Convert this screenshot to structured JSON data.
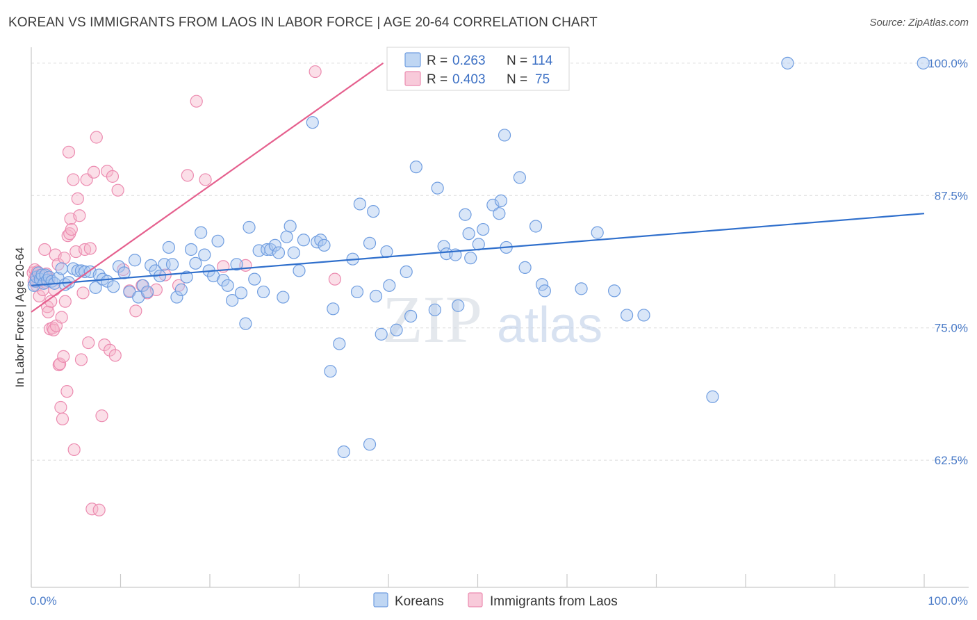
{
  "title": "KOREAN VS IMMIGRANTS FROM LAOS IN LABOR FORCE | AGE 20-64 CORRELATION CHART",
  "source": "Source: ZipAtlas.com",
  "watermark": {
    "part1": "ZIP",
    "part2": "atlas"
  },
  "colors": {
    "blue_fill": "#aac8ef",
    "blue_stroke": "#6f9de0",
    "blue_line": "#2f6fcc",
    "pink_fill": "#f6b8cd",
    "pink_stroke": "#ec8bb0",
    "pink_line": "#e5608e",
    "grid": "#dcdcdc",
    "tick_text": "#4a7bc8"
  },
  "legend": {
    "rows": [
      {
        "r_label": "R = ",
        "r_value": "0.263",
        "n_label": "N = ",
        "n_value": "114"
      },
      {
        "r_label": "R = ",
        "r_value": "0.403",
        "n_label": "N = ",
        "n_value": "75"
      }
    ]
  },
  "chart_data": {
    "type": "scatter",
    "title": "KOREAN VS IMMIGRANTS FROM LAOS IN LABOR FORCE | AGE 20-64 CORRELATION CHART",
    "ylabel": "In Labor Force | Age 20-64",
    "xlabel": "",
    "xlim": [
      0,
      100
    ],
    "ylim": [
      50.5,
      101.5
    ],
    "x_tick_labels": [
      "0.0%",
      "100.0%"
    ],
    "y_ticks": [
      100,
      87.5,
      75,
      62.5
    ],
    "y_tick_labels": [
      "100.0%",
      "87.5%",
      "75.0%",
      "62.5%"
    ],
    "grid": true,
    "legend_position": "top-center",
    "series": [
      {
        "name": "Koreans",
        "color": "blue",
        "trend": {
          "x": [
            0,
            100
          ],
          "y": [
            79.0,
            85.8
          ]
        },
        "points": [
          [
            0.3,
            79.0
          ],
          [
            0.5,
            79.4
          ],
          [
            0.6,
            79.8
          ],
          [
            0.8,
            80.2
          ],
          [
            1.0,
            79.6
          ],
          [
            1.2,
            80.0
          ],
          [
            1.4,
            79.2
          ],
          [
            1.6,
            80.0
          ],
          [
            1.8,
            79.5
          ],
          [
            2.0,
            79.8
          ],
          [
            2.3,
            79.4
          ],
          [
            2.6,
            79.2
          ],
          [
            3.0,
            79.7
          ],
          [
            3.4,
            80.6
          ],
          [
            3.8,
            79.1
          ],
          [
            4.2,
            79.3
          ],
          [
            4.7,
            80.6
          ],
          [
            5.2,
            80.4
          ],
          [
            5.6,
            80.4
          ],
          [
            6.0,
            80.3
          ],
          [
            6.6,
            80.3
          ],
          [
            7.2,
            78.8
          ],
          [
            7.6,
            80.0
          ],
          [
            8.0,
            79.6
          ],
          [
            8.5,
            79.4
          ],
          [
            9.2,
            78.9
          ],
          [
            9.8,
            80.8
          ],
          [
            10.4,
            80.2
          ],
          [
            11.0,
            78.4
          ],
          [
            11.6,
            81.4
          ],
          [
            12.0,
            77.9
          ],
          [
            12.5,
            79.0
          ],
          [
            13.0,
            78.4
          ],
          [
            13.4,
            80.9
          ],
          [
            13.9,
            80.4
          ],
          [
            14.4,
            79.9
          ],
          [
            14.9,
            81.0
          ],
          [
            15.4,
            82.6
          ],
          [
            15.8,
            81.0
          ],
          [
            16.3,
            77.9
          ],
          [
            16.8,
            78.6
          ],
          [
            17.4,
            79.8
          ],
          [
            17.9,
            82.4
          ],
          [
            18.4,
            81.1
          ],
          [
            19.0,
            84.0
          ],
          [
            19.4,
            81.9
          ],
          [
            19.9,
            80.4
          ],
          [
            20.4,
            79.9
          ],
          [
            20.9,
            83.2
          ],
          [
            21.5,
            79.5
          ],
          [
            22.0,
            79.0
          ],
          [
            22.5,
            77.6
          ],
          [
            23.0,
            81.0
          ],
          [
            23.5,
            78.3
          ],
          [
            24.0,
            75.4
          ],
          [
            24.4,
            84.5
          ],
          [
            25.0,
            79.6
          ],
          [
            25.5,
            82.3
          ],
          [
            26.0,
            78.4
          ],
          [
            26.4,
            82.4
          ],
          [
            26.8,
            82.4
          ],
          [
            27.3,
            82.8
          ],
          [
            27.7,
            82.1
          ],
          [
            28.2,
            77.9
          ],
          [
            28.6,
            83.6
          ],
          [
            29.0,
            84.6
          ],
          [
            29.4,
            82.1
          ],
          [
            30.0,
            80.4
          ],
          [
            30.5,
            83.3
          ],
          [
            31.5,
            94.4
          ],
          [
            32.0,
            83.1
          ],
          [
            32.4,
            83.3
          ],
          [
            32.8,
            82.8
          ],
          [
            33.5,
            70.9
          ],
          [
            33.8,
            76.8
          ],
          [
            34.5,
            73.5
          ],
          [
            35.0,
            63.3
          ],
          [
            36.0,
            81.5
          ],
          [
            36.5,
            78.4
          ],
          [
            36.8,
            86.7
          ],
          [
            37.9,
            83.0
          ],
          [
            38.3,
            86.0
          ],
          [
            38.6,
            78.0
          ],
          [
            39.2,
            74.4
          ],
          [
            39.8,
            82.2
          ],
          [
            40.1,
            79.0
          ],
          [
            40.9,
            74.8
          ],
          [
            42.0,
            80.3
          ],
          [
            42.5,
            76.1
          ],
          [
            43.1,
            90.2
          ],
          [
            45.2,
            76.7
          ],
          [
            45.5,
            88.2
          ],
          [
            46.2,
            82.7
          ],
          [
            46.5,
            82.0
          ],
          [
            47.5,
            81.9
          ],
          [
            47.8,
            77.1
          ],
          [
            48.6,
            85.7
          ],
          [
            49.0,
            83.9
          ],
          [
            49.2,
            81.6
          ],
          [
            50.1,
            82.9
          ],
          [
            50.6,
            84.3
          ],
          [
            51.7,
            86.6
          ],
          [
            52.4,
            85.8
          ],
          [
            52.6,
            87.0
          ],
          [
            53.0,
            93.2
          ],
          [
            53.2,
            82.6
          ],
          [
            54.7,
            89.2
          ],
          [
            55.3,
            80.7
          ],
          [
            56.5,
            84.6
          ],
          [
            57.2,
            79.1
          ],
          [
            57.5,
            78.5
          ],
          [
            61.6,
            78.7
          ],
          [
            63.4,
            84.0
          ],
          [
            65.3,
            78.5
          ],
          [
            66.7,
            76.2
          ],
          [
            68.6,
            76.2
          ],
          [
            76.3,
            68.5
          ],
          [
            84.7,
            100.0
          ],
          [
            99.9,
            100.0
          ],
          [
            37.9,
            64.0
          ]
        ]
      },
      {
        "name": "Immigrants from Laos",
        "color": "pink",
        "trend": {
          "x": [
            0,
            39.4
          ],
          "y": [
            76.5,
            100.0
          ]
        },
        "points": [
          [
            0.2,
            80.2
          ],
          [
            0.3,
            79.4
          ],
          [
            0.4,
            80.5
          ],
          [
            0.5,
            79.9
          ],
          [
            0.6,
            79.0
          ],
          [
            0.7,
            80.3
          ],
          [
            0.8,
            79.4
          ],
          [
            0.9,
            78.0
          ],
          [
            1.0,
            80.0
          ],
          [
            1.1,
            79.5
          ],
          [
            1.2,
            79.8
          ],
          [
            1.3,
            78.6
          ],
          [
            1.4,
            79.9
          ],
          [
            1.5,
            82.4
          ],
          [
            1.6,
            79.3
          ],
          [
            1.7,
            80.1
          ],
          [
            1.8,
            77.0
          ],
          [
            1.9,
            76.5
          ],
          [
            2.0,
            79.6
          ],
          [
            2.1,
            74.9
          ],
          [
            2.2,
            77.5
          ],
          [
            2.4,
            75.0
          ],
          [
            2.5,
            74.8
          ],
          [
            2.6,
            78.6
          ],
          [
            2.7,
            81.9
          ],
          [
            2.8,
            75.2
          ],
          [
            3.0,
            81.0
          ],
          [
            3.1,
            71.5
          ],
          [
            3.2,
            71.6
          ],
          [
            3.3,
            67.5
          ],
          [
            3.4,
            76.0
          ],
          [
            3.5,
            66.4
          ],
          [
            3.6,
            72.3
          ],
          [
            3.7,
            81.6
          ],
          [
            3.8,
            77.5
          ],
          [
            4.0,
            69.0
          ],
          [
            4.1,
            83.7
          ],
          [
            4.2,
            91.6
          ],
          [
            4.3,
            83.9
          ],
          [
            4.4,
            85.3
          ],
          [
            4.5,
            84.3
          ],
          [
            4.7,
            89.0
          ],
          [
            4.8,
            63.5
          ],
          [
            5.0,
            82.2
          ],
          [
            5.2,
            87.2
          ],
          [
            5.4,
            85.6
          ],
          [
            5.6,
            72.0
          ],
          [
            5.8,
            78.3
          ],
          [
            6.0,
            82.4
          ],
          [
            6.2,
            89.0
          ],
          [
            6.4,
            73.6
          ],
          [
            6.6,
            82.5
          ],
          [
            6.8,
            57.9
          ],
          [
            7.0,
            89.7
          ],
          [
            7.3,
            93.0
          ],
          [
            7.6,
            57.8
          ],
          [
            7.9,
            66.7
          ],
          [
            8.2,
            73.4
          ],
          [
            8.5,
            89.8
          ],
          [
            8.8,
            72.9
          ],
          [
            9.1,
            89.3
          ],
          [
            9.4,
            72.4
          ],
          [
            9.7,
            88.0
          ],
          [
            10.3,
            80.5
          ],
          [
            11.0,
            78.5
          ],
          [
            11.7,
            76.6
          ],
          [
            12.4,
            79.0
          ],
          [
            13.0,
            78.3
          ],
          [
            14.0,
            78.6
          ],
          [
            15.0,
            80.0
          ],
          [
            16.5,
            79.0
          ],
          [
            17.5,
            89.4
          ],
          [
            18.5,
            96.4
          ],
          [
            19.5,
            89.0
          ],
          [
            21.5,
            80.8
          ],
          [
            24.0,
            80.9
          ],
          [
            31.8,
            99.2
          ],
          [
            34.0,
            79.6
          ]
        ]
      }
    ]
  },
  "bottom_legend": [
    {
      "label": "Koreans",
      "color": "blue"
    },
    {
      "label": "Immigrants from Laos",
      "color": "pink"
    }
  ]
}
